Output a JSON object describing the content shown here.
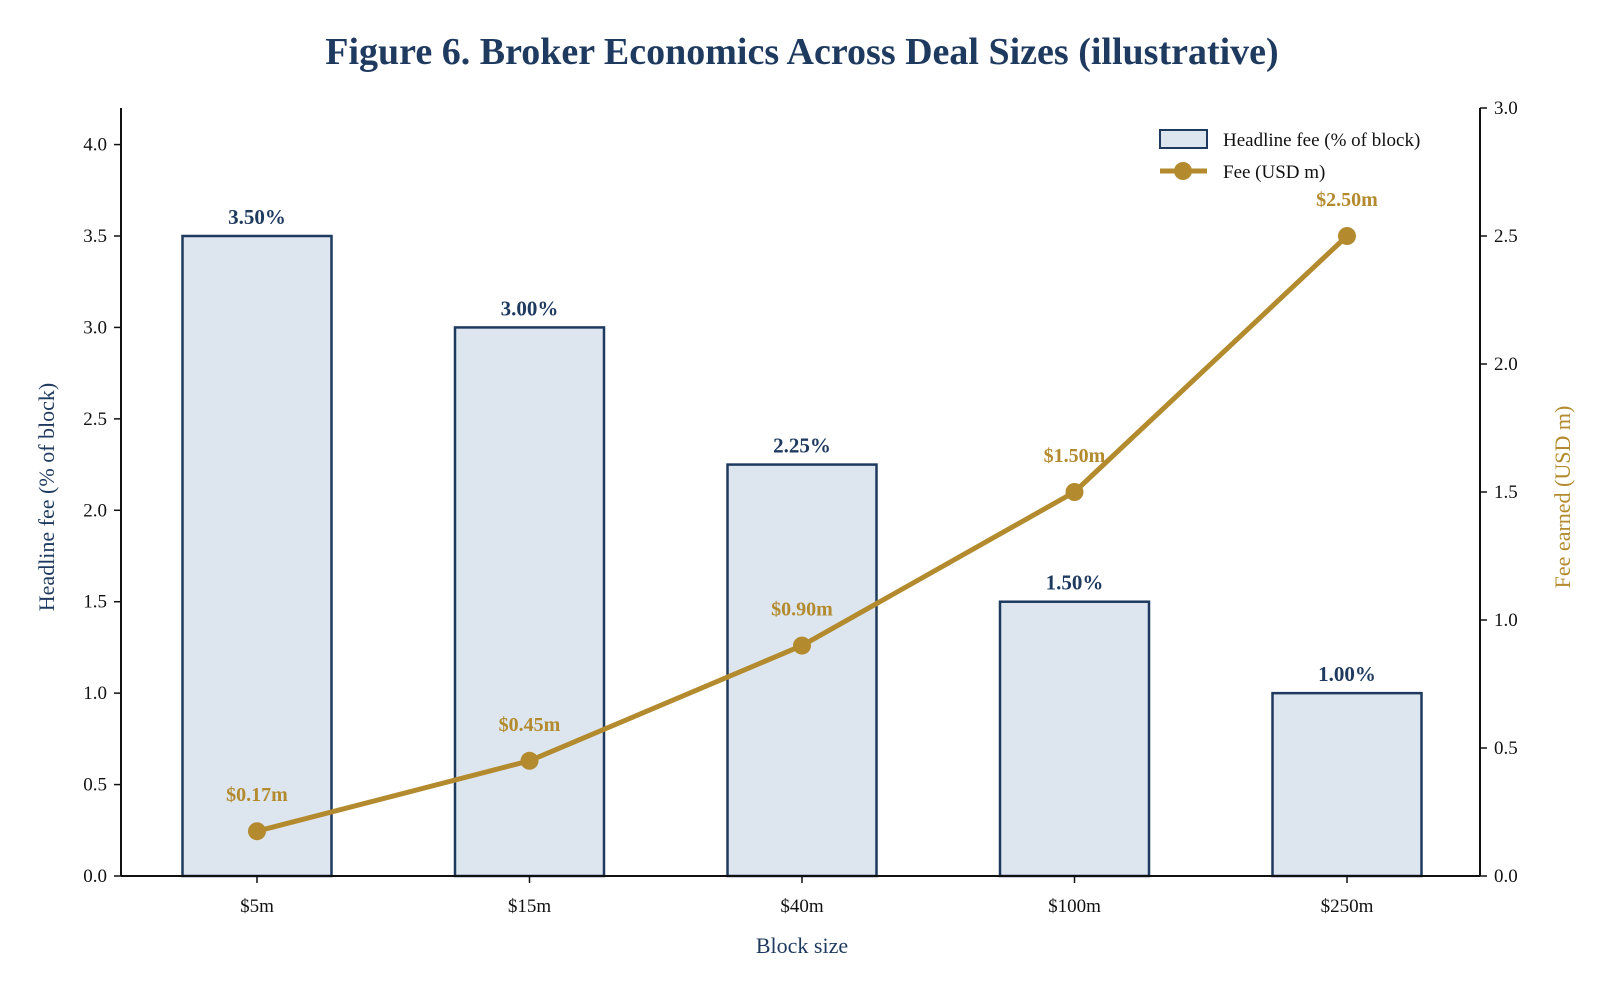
{
  "colors": {
    "navy": "#1f3a5f",
    "bar_fill": "#dde5ef",
    "gold": "#b38b2e",
    "axis": "#111111"
  },
  "chart_data": {
    "type": "bar",
    "title": "Figure 6. Broker Economics Across Deal Sizes (illustrative)",
    "xlabel": "Block size",
    "ylabel": "Headline fee (% of block)",
    "y2label": "Fee earned (USD m)",
    "categories": [
      "$5m",
      "$15m",
      "$40m",
      "$100m",
      "$250m"
    ],
    "ylim": [
      0,
      4.2
    ],
    "y2lim": [
      0,
      3.0
    ],
    "yticks": [
      "0.0",
      "0.5",
      "1.0",
      "1.5",
      "2.0",
      "2.5",
      "3.0",
      "3.5",
      "4.0"
    ],
    "y2ticks": [
      "0.0",
      "0.5",
      "1.0",
      "1.5",
      "2.0",
      "2.5",
      "3.0"
    ],
    "legend_position": "top-right",
    "grid": false,
    "series": [
      {
        "name": "Headline fee (% of block)",
        "type": "bar",
        "axis": "left",
        "values": [
          3.5,
          3.0,
          2.25,
          1.5,
          1.0
        ],
        "labels": [
          "3.50%",
          "3.00%",
          "2.25%",
          "1.50%",
          "1.00%"
        ]
      },
      {
        "name": "Fee (USD m)",
        "type": "line",
        "axis": "right",
        "values": [
          0.175,
          0.45,
          0.9,
          1.5,
          2.5
        ],
        "labels": [
          "$0.17m",
          "$0.45m",
          "$0.90m",
          "$1.50m",
          "$2.50m"
        ]
      }
    ]
  }
}
